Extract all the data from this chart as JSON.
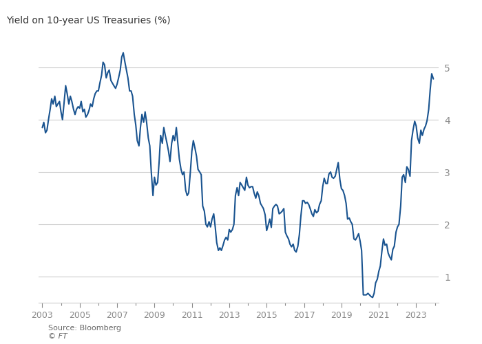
{
  "title": "Yield on 10-year US Treasuries (%)",
  "source": "Source: Bloomberg",
  "ft_label": "© FT",
  "background_color": "#ffffff",
  "plot_bg_color": "#ffffff",
  "text_color": "#333333",
  "line_color": "#1a5490",
  "grid_color": "#cccccc",
  "tick_label_color": "#8a8a8a",
  "title_color": "#333333",
  "source_color": "#666666",
  "ylim": [
    0.5,
    5.5
  ],
  "yticks": [
    1,
    2,
    3,
    4,
    5
  ],
  "x_start_year": 2002.8,
  "x_end_year": 2024.2,
  "xtick_years": [
    2003,
    2005,
    2007,
    2009,
    2011,
    2013,
    2015,
    2017,
    2019,
    2021,
    2023
  ],
  "data": [
    [
      2003.0,
      3.85
    ],
    [
      2003.08,
      3.95
    ],
    [
      2003.17,
      3.75
    ],
    [
      2003.25,
      3.8
    ],
    [
      2003.33,
      4.0
    ],
    [
      2003.42,
      4.2
    ],
    [
      2003.5,
      4.4
    ],
    [
      2003.58,
      4.3
    ],
    [
      2003.67,
      4.45
    ],
    [
      2003.75,
      4.25
    ],
    [
      2003.83,
      4.3
    ],
    [
      2003.92,
      4.35
    ],
    [
      2004.0,
      4.15
    ],
    [
      2004.08,
      4.0
    ],
    [
      2004.17,
      4.35
    ],
    [
      2004.25,
      4.65
    ],
    [
      2004.33,
      4.5
    ],
    [
      2004.42,
      4.3
    ],
    [
      2004.5,
      4.45
    ],
    [
      2004.58,
      4.35
    ],
    [
      2004.67,
      4.2
    ],
    [
      2004.75,
      4.1
    ],
    [
      2004.83,
      4.2
    ],
    [
      2004.92,
      4.25
    ],
    [
      2005.0,
      4.22
    ],
    [
      2005.08,
      4.35
    ],
    [
      2005.17,
      4.15
    ],
    [
      2005.25,
      4.2
    ],
    [
      2005.33,
      4.05
    ],
    [
      2005.42,
      4.1
    ],
    [
      2005.5,
      4.18
    ],
    [
      2005.58,
      4.3
    ],
    [
      2005.67,
      4.25
    ],
    [
      2005.75,
      4.4
    ],
    [
      2005.83,
      4.5
    ],
    [
      2005.92,
      4.55
    ],
    [
      2006.0,
      4.55
    ],
    [
      2006.08,
      4.7
    ],
    [
      2006.17,
      4.85
    ],
    [
      2006.25,
      5.1
    ],
    [
      2006.33,
      5.05
    ],
    [
      2006.42,
      4.8
    ],
    [
      2006.5,
      4.9
    ],
    [
      2006.58,
      4.95
    ],
    [
      2006.67,
      4.75
    ],
    [
      2006.75,
      4.7
    ],
    [
      2006.83,
      4.65
    ],
    [
      2006.92,
      4.6
    ],
    [
      2007.0,
      4.68
    ],
    [
      2007.08,
      4.8
    ],
    [
      2007.17,
      4.95
    ],
    [
      2007.25,
      5.2
    ],
    [
      2007.33,
      5.28
    ],
    [
      2007.42,
      5.1
    ],
    [
      2007.5,
      4.95
    ],
    [
      2007.58,
      4.8
    ],
    [
      2007.67,
      4.55
    ],
    [
      2007.75,
      4.55
    ],
    [
      2007.83,
      4.45
    ],
    [
      2007.92,
      4.1
    ],
    [
      2008.0,
      3.9
    ],
    [
      2008.08,
      3.6
    ],
    [
      2008.17,
      3.5
    ],
    [
      2008.25,
      3.85
    ],
    [
      2008.33,
      4.1
    ],
    [
      2008.42,
      3.95
    ],
    [
      2008.5,
      4.15
    ],
    [
      2008.58,
      3.95
    ],
    [
      2008.67,
      3.65
    ],
    [
      2008.75,
      3.5
    ],
    [
      2008.83,
      3.0
    ],
    [
      2008.92,
      2.55
    ],
    [
      2009.0,
      2.9
    ],
    [
      2009.08,
      2.75
    ],
    [
      2009.17,
      2.8
    ],
    [
      2009.25,
      3.2
    ],
    [
      2009.33,
      3.7
    ],
    [
      2009.42,
      3.55
    ],
    [
      2009.5,
      3.85
    ],
    [
      2009.58,
      3.7
    ],
    [
      2009.67,
      3.55
    ],
    [
      2009.75,
      3.4
    ],
    [
      2009.83,
      3.2
    ],
    [
      2009.92,
      3.55
    ],
    [
      2010.0,
      3.7
    ],
    [
      2010.08,
      3.6
    ],
    [
      2010.17,
      3.85
    ],
    [
      2010.25,
      3.55
    ],
    [
      2010.33,
      3.25
    ],
    [
      2010.42,
      3.05
    ],
    [
      2010.5,
      2.95
    ],
    [
      2010.58,
      3.0
    ],
    [
      2010.67,
      2.65
    ],
    [
      2010.75,
      2.55
    ],
    [
      2010.83,
      2.6
    ],
    [
      2010.92,
      3.0
    ],
    [
      2011.0,
      3.4
    ],
    [
      2011.08,
      3.6
    ],
    [
      2011.17,
      3.45
    ],
    [
      2011.25,
      3.3
    ],
    [
      2011.33,
      3.05
    ],
    [
      2011.42,
      3.0
    ],
    [
      2011.5,
      2.95
    ],
    [
      2011.58,
      2.35
    ],
    [
      2011.67,
      2.25
    ],
    [
      2011.75,
      2.0
    ],
    [
      2011.83,
      1.95
    ],
    [
      2011.92,
      2.05
    ],
    [
      2012.0,
      1.95
    ],
    [
      2012.08,
      2.1
    ],
    [
      2012.17,
      2.2
    ],
    [
      2012.25,
      1.95
    ],
    [
      2012.33,
      1.65
    ],
    [
      2012.42,
      1.5
    ],
    [
      2012.5,
      1.55
    ],
    [
      2012.58,
      1.5
    ],
    [
      2012.67,
      1.6
    ],
    [
      2012.75,
      1.7
    ],
    [
      2012.83,
      1.75
    ],
    [
      2012.92,
      1.7
    ],
    [
      2013.0,
      1.9
    ],
    [
      2013.08,
      1.85
    ],
    [
      2013.17,
      1.9
    ],
    [
      2013.25,
      2.0
    ],
    [
      2013.33,
      2.55
    ],
    [
      2013.42,
      2.7
    ],
    [
      2013.5,
      2.55
    ],
    [
      2013.58,
      2.8
    ],
    [
      2013.67,
      2.75
    ],
    [
      2013.75,
      2.7
    ],
    [
      2013.83,
      2.65
    ],
    [
      2013.92,
      2.9
    ],
    [
      2014.0,
      2.75
    ],
    [
      2014.08,
      2.7
    ],
    [
      2014.17,
      2.72
    ],
    [
      2014.25,
      2.72
    ],
    [
      2014.33,
      2.6
    ],
    [
      2014.42,
      2.5
    ],
    [
      2014.5,
      2.62
    ],
    [
      2014.58,
      2.55
    ],
    [
      2014.67,
      2.4
    ],
    [
      2014.75,
      2.35
    ],
    [
      2014.83,
      2.3
    ],
    [
      2014.92,
      2.18
    ],
    [
      2015.0,
      1.88
    ],
    [
      2015.08,
      1.98
    ],
    [
      2015.17,
      2.1
    ],
    [
      2015.25,
      1.94
    ],
    [
      2015.33,
      2.3
    ],
    [
      2015.42,
      2.35
    ],
    [
      2015.5,
      2.38
    ],
    [
      2015.58,
      2.35
    ],
    [
      2015.67,
      2.2
    ],
    [
      2015.75,
      2.22
    ],
    [
      2015.83,
      2.25
    ],
    [
      2015.92,
      2.3
    ],
    [
      2016.0,
      1.85
    ],
    [
      2016.08,
      1.78
    ],
    [
      2016.17,
      1.72
    ],
    [
      2016.25,
      1.62
    ],
    [
      2016.33,
      1.57
    ],
    [
      2016.42,
      1.62
    ],
    [
      2016.5,
      1.5
    ],
    [
      2016.58,
      1.47
    ],
    [
      2016.67,
      1.58
    ],
    [
      2016.75,
      1.8
    ],
    [
      2016.83,
      2.15
    ],
    [
      2016.92,
      2.45
    ],
    [
      2017.0,
      2.45
    ],
    [
      2017.08,
      2.4
    ],
    [
      2017.17,
      2.42
    ],
    [
      2017.25,
      2.38
    ],
    [
      2017.33,
      2.3
    ],
    [
      2017.42,
      2.2
    ],
    [
      2017.5,
      2.15
    ],
    [
      2017.58,
      2.28
    ],
    [
      2017.67,
      2.22
    ],
    [
      2017.75,
      2.25
    ],
    [
      2017.83,
      2.38
    ],
    [
      2017.92,
      2.45
    ],
    [
      2018.0,
      2.72
    ],
    [
      2018.08,
      2.88
    ],
    [
      2018.17,
      2.78
    ],
    [
      2018.25,
      2.78
    ],
    [
      2018.33,
      2.96
    ],
    [
      2018.42,
      3.0
    ],
    [
      2018.5,
      2.9
    ],
    [
      2018.58,
      2.88
    ],
    [
      2018.67,
      2.92
    ],
    [
      2018.75,
      3.05
    ],
    [
      2018.83,
      3.18
    ],
    [
      2018.92,
      2.85
    ],
    [
      2019.0,
      2.68
    ],
    [
      2019.08,
      2.65
    ],
    [
      2019.17,
      2.55
    ],
    [
      2019.25,
      2.4
    ],
    [
      2019.33,
      2.1
    ],
    [
      2019.42,
      2.12
    ],
    [
      2019.5,
      2.05
    ],
    [
      2019.58,
      2.0
    ],
    [
      2019.67,
      1.72
    ],
    [
      2019.75,
      1.7
    ],
    [
      2019.83,
      1.75
    ],
    [
      2019.92,
      1.82
    ],
    [
      2020.0,
      1.68
    ],
    [
      2020.08,
      1.5
    ],
    [
      2020.17,
      0.65
    ],
    [
      2020.25,
      0.65
    ],
    [
      2020.33,
      0.65
    ],
    [
      2020.42,
      0.68
    ],
    [
      2020.5,
      0.65
    ],
    [
      2020.58,
      0.62
    ],
    [
      2020.67,
      0.6
    ],
    [
      2020.75,
      0.68
    ],
    [
      2020.83,
      0.88
    ],
    [
      2020.92,
      0.95
    ],
    [
      2021.0,
      1.1
    ],
    [
      2021.08,
      1.2
    ],
    [
      2021.17,
      1.5
    ],
    [
      2021.25,
      1.72
    ],
    [
      2021.33,
      1.6
    ],
    [
      2021.42,
      1.62
    ],
    [
      2021.5,
      1.45
    ],
    [
      2021.58,
      1.38
    ],
    [
      2021.67,
      1.32
    ],
    [
      2021.75,
      1.52
    ],
    [
      2021.83,
      1.58
    ],
    [
      2021.92,
      1.85
    ],
    [
      2022.0,
      1.95
    ],
    [
      2022.08,
      2.0
    ],
    [
      2022.17,
      2.35
    ],
    [
      2022.25,
      2.9
    ],
    [
      2022.33,
      2.95
    ],
    [
      2022.42,
      2.8
    ],
    [
      2022.5,
      3.1
    ],
    [
      2022.58,
      3.05
    ],
    [
      2022.67,
      2.92
    ],
    [
      2022.75,
      3.6
    ],
    [
      2022.83,
      3.8
    ],
    [
      2022.92,
      3.97
    ],
    [
      2023.0,
      3.88
    ],
    [
      2023.08,
      3.65
    ],
    [
      2023.17,
      3.55
    ],
    [
      2023.25,
      3.8
    ],
    [
      2023.33,
      3.7
    ],
    [
      2023.42,
      3.82
    ],
    [
      2023.5,
      3.88
    ],
    [
      2023.58,
      3.98
    ],
    [
      2023.67,
      4.2
    ],
    [
      2023.75,
      4.58
    ],
    [
      2023.83,
      4.88
    ],
    [
      2023.92,
      4.78
    ]
  ]
}
